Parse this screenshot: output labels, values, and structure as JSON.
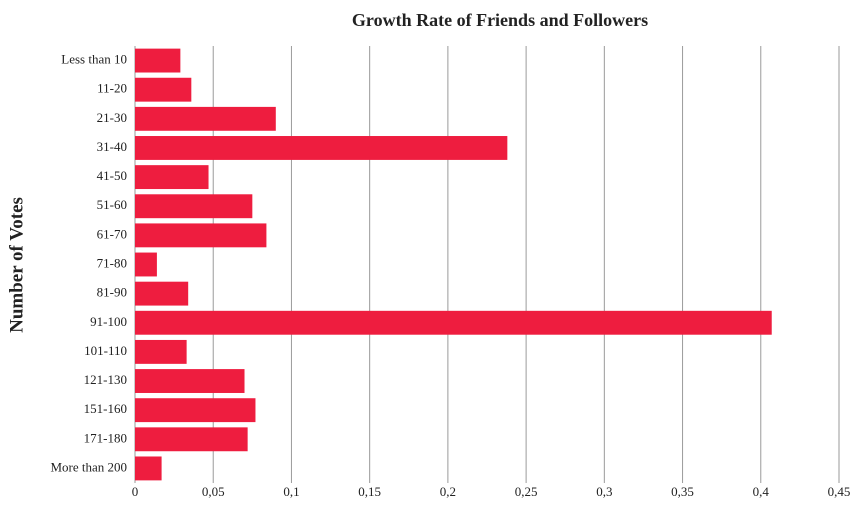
{
  "chart_data": {
    "type": "bar",
    "orientation": "horizontal",
    "title": "Growth Rate of Friends and Followers",
    "y_label": "Number of Votes",
    "categories": [
      "Less than 10",
      "11-20",
      "21-30",
      "31-40",
      "41-50",
      "51-60",
      "61-70",
      "71-80",
      "81-90",
      "91-100",
      "101-110",
      "121-130",
      "151-160",
      "171-180",
      "More than 200"
    ],
    "values": [
      0.029,
      0.036,
      0.09,
      0.238,
      0.047,
      0.075,
      0.084,
      0.014,
      0.034,
      0.407,
      0.033,
      0.07,
      0.077,
      0.072,
      0.017
    ],
    "color": "#ee1d3f",
    "xlim": [
      0,
      0.45
    ],
    "xticks": [
      0,
      {
        "value": 0.05,
        "label": "0,05"
      },
      {
        "value": 0.1,
        "label": "0,1"
      },
      {
        "value": 0.15,
        "label": "0,15"
      },
      {
        "value": 0.2,
        "label": "0,2"
      },
      {
        "value": 0.25,
        "label": "0,25"
      },
      {
        "value": 0.3,
        "label": "0,3"
      },
      {
        "value": 0.35,
        "label": "0,35"
      },
      {
        "value": 0.4,
        "label": "0,4"
      },
      {
        "value": 0.45,
        "label": "0,45"
      }
    ],
    "grid": true
  }
}
